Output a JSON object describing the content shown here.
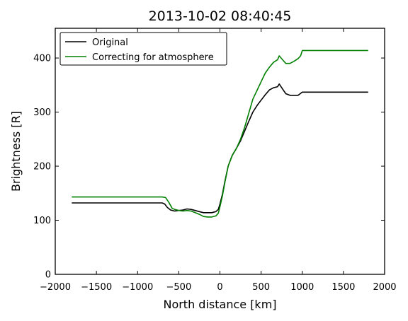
{
  "chart_data": {
    "type": "line",
    "title": "2013-10-02 08:40:45",
    "xlabel": "North distance [km]",
    "ylabel": "Brightness [R]",
    "xlim": [
      -2000,
      2000
    ],
    "ylim": [
      0,
      455
    ],
    "xticks": [
      -2000,
      -1500,
      -1000,
      -500,
      0,
      500,
      1000,
      1500,
      2000
    ],
    "yticks": [
      0,
      100,
      200,
      300,
      400
    ],
    "xtick_labels": [
      "−2000",
      "−1500",
      "−1000",
      "−500",
      "0",
      "500",
      "1000",
      "1500",
      "2000"
    ],
    "ytick_labels": [
      "0",
      "100",
      "200",
      "300",
      "400"
    ],
    "grid": false,
    "legend_position": "top-left",
    "series": [
      {
        "name": "Original",
        "color": "#000000",
        "points": [
          [
            -1800,
            132
          ],
          [
            -700,
            132
          ],
          [
            -670,
            130
          ],
          [
            -640,
            124
          ],
          [
            -600,
            119
          ],
          [
            -550,
            117
          ],
          [
            -500,
            118
          ],
          [
            -450,
            119
          ],
          [
            -400,
            121
          ],
          [
            -350,
            120
          ],
          [
            -300,
            118
          ],
          [
            -250,
            116
          ],
          [
            -200,
            114
          ],
          [
            -150,
            114
          ],
          [
            -100,
            114
          ],
          [
            -50,
            116
          ],
          [
            -20,
            120
          ],
          [
            0,
            130
          ],
          [
            30,
            148
          ],
          [
            60,
            172
          ],
          [
            100,
            200
          ],
          [
            150,
            220
          ],
          [
            200,
            233
          ],
          [
            250,
            247
          ],
          [
            300,
            265
          ],
          [
            350,
            283
          ],
          [
            400,
            300
          ],
          [
            450,
            312
          ],
          [
            500,
            322
          ],
          [
            550,
            332
          ],
          [
            600,
            341
          ],
          [
            650,
            345
          ],
          [
            700,
            347
          ],
          [
            720,
            352
          ],
          [
            760,
            343
          ],
          [
            800,
            334
          ],
          [
            850,
            331
          ],
          [
            900,
            331
          ],
          [
            950,
            331
          ],
          [
            1000,
            337
          ],
          [
            1800,
            337
          ]
        ]
      },
      {
        "name": "Correcting for atmosphere",
        "color": "#008000",
        "points": [
          [
            -1800,
            143
          ],
          [
            -700,
            143
          ],
          [
            -660,
            142
          ],
          [
            -620,
            133
          ],
          [
            -580,
            122
          ],
          [
            -550,
            120
          ],
          [
            -500,
            118
          ],
          [
            -450,
            117
          ],
          [
            -400,
            118
          ],
          [
            -350,
            117
          ],
          [
            -300,
            114
          ],
          [
            -250,
            111
          ],
          [
            -200,
            107
          ],
          [
            -150,
            106
          ],
          [
            -100,
            106
          ],
          [
            -50,
            108
          ],
          [
            -20,
            113
          ],
          [
            0,
            125
          ],
          [
            30,
            145
          ],
          [
            60,
            170
          ],
          [
            100,
            200
          ],
          [
            150,
            220
          ],
          [
            200,
            233
          ],
          [
            250,
            250
          ],
          [
            300,
            272
          ],
          [
            350,
            298
          ],
          [
            400,
            324
          ],
          [
            450,
            340
          ],
          [
            500,
            356
          ],
          [
            550,
            372
          ],
          [
            600,
            383
          ],
          [
            650,
            392
          ],
          [
            700,
            397
          ],
          [
            720,
            404
          ],
          [
            760,
            397
          ],
          [
            800,
            390
          ],
          [
            850,
            390
          ],
          [
            900,
            394
          ],
          [
            950,
            399
          ],
          [
            980,
            404
          ],
          [
            1000,
            414
          ],
          [
            1800,
            414
          ]
        ]
      }
    ]
  }
}
